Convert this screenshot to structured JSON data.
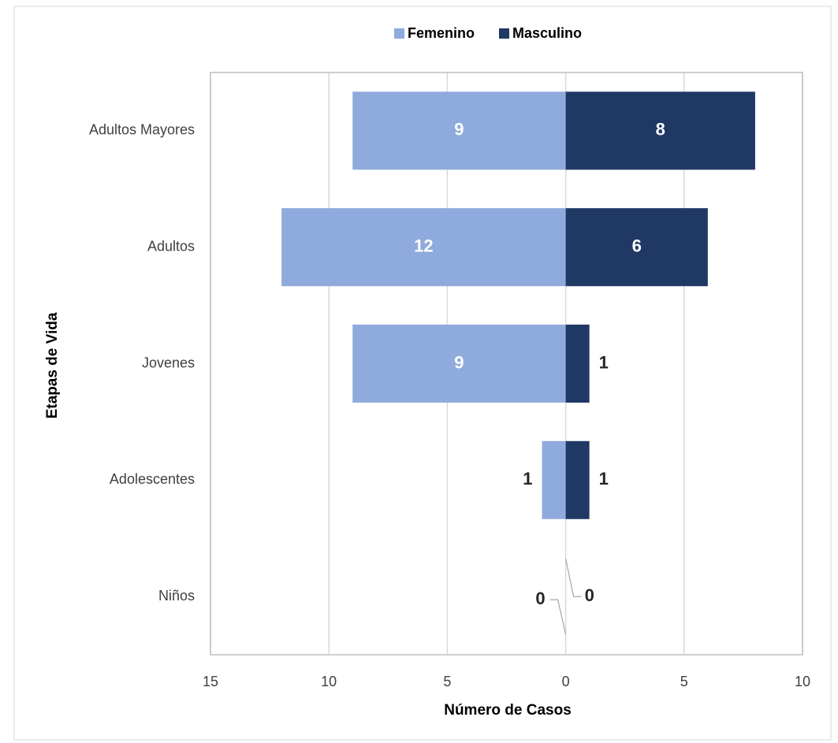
{
  "chart_data": {
    "type": "bar",
    "orientation": "horizontal",
    "axis_title_x": "Número de Casos",
    "axis_title_y": "Etapas de Vida",
    "categories": [
      "Adultos Mayores",
      "Adultos",
      "Jovenes",
      "Adolescentes",
      "Niños"
    ],
    "series": [
      {
        "name": "Femenino",
        "color": "#8faadc",
        "values": [
          -9,
          -12,
          -9,
          -1,
          0
        ],
        "value_labels": [
          "9",
          "12",
          "9",
          "1",
          "0"
        ]
      },
      {
        "name": "Masculino",
        "color": "#203864",
        "values": [
          8,
          6,
          1,
          1,
          0
        ]
      }
    ],
    "xlim": [
      -15,
      10
    ],
    "xticks": [
      {
        "value": -15,
        "label": "15"
      },
      {
        "value": -10,
        "label": "10"
      },
      {
        "value": -5,
        "label": "5"
      },
      0,
      5,
      10
    ],
    "grid": true,
    "legend": "top"
  }
}
